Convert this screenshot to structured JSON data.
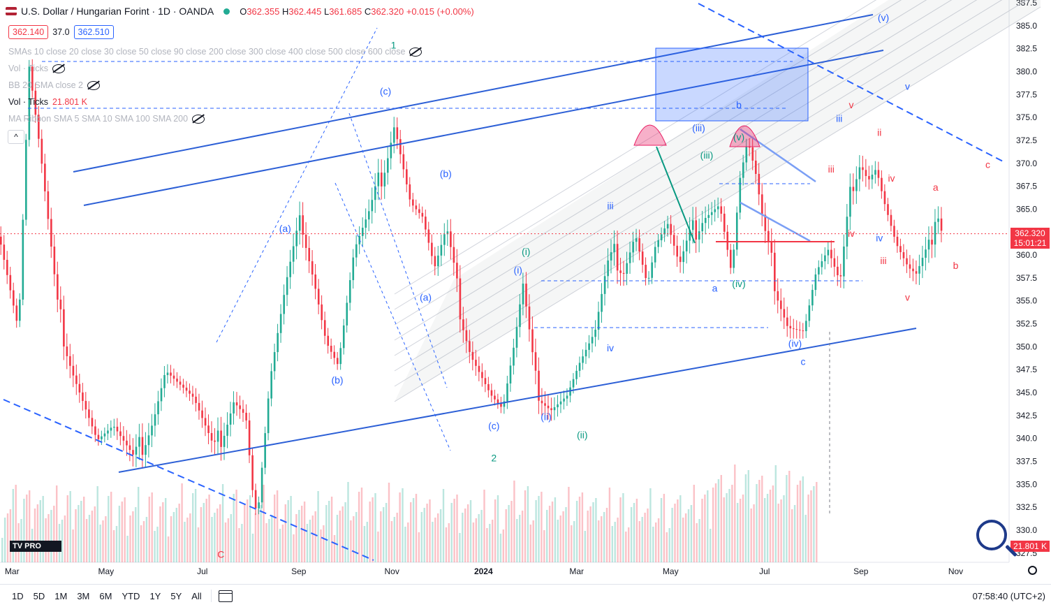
{
  "header": {
    "title": "U.S. Dollar / Hungarian Forint · 1D · OANDA",
    "open_label": "O",
    "open": "362.355",
    "high_label": "H",
    "high": "362.445",
    "low_label": "L",
    "low": "361.685",
    "close_label": "C",
    "close": "362.320",
    "change": "+0.015 (+0.00%)"
  },
  "quote": {
    "sell": "362.140",
    "spread": "37.0",
    "buy": "362.510"
  },
  "indicators": [
    {
      "label": "SMAs 10 close 20 close 30 close 50 close 90 close 200 close 300 close 400 close 500 close 600 close",
      "value": "",
      "visible": false
    },
    {
      "label": "Vol · Ticks",
      "value": "",
      "visible": false
    },
    {
      "label": "BB 20 SMA close 2",
      "value": "",
      "visible": false
    },
    {
      "label": "Vol · Ticks",
      "value": "21.801 K",
      "visible": true
    },
    {
      "label": "MA Ribbon SMA 5 SMA 10 SMA 100 SMA 200",
      "value": "",
      "visible": false
    }
  ],
  "collapse_label": "^",
  "price_tag": {
    "price": "362.320",
    "countdown": "15:01:21"
  },
  "volume_tag": "21.801 K",
  "logo": "TV PRO",
  "bottom_bar": {
    "ranges": [
      "1D",
      "5D",
      "1M",
      "3M",
      "6M",
      "YTD",
      "1Y",
      "5Y",
      "All"
    ],
    "time": "07:58:40 (UTC+2)"
  },
  "colors": {
    "up": "#22ab94",
    "down": "#f23645",
    "drawing": "#2962ff",
    "accent_pink": "#e91e63"
  },
  "chart_data": {
    "type": "candlestick",
    "x_ticks": [
      "Mar",
      "May",
      "Jul",
      "Sep",
      "Nov",
      "2024",
      "Mar",
      "May",
      "Jul",
      "Sep",
      "Nov"
    ],
    "y_ticks": [
      327.5,
      330.0,
      332.5,
      335.0,
      337.5,
      340.0,
      342.5,
      345.0,
      347.5,
      350.0,
      352.5,
      355.0,
      357.5,
      360.0,
      362.5,
      365.0,
      367.5,
      370.0,
      372.5,
      375.0,
      377.5,
      380.0,
      382.5,
      385.0,
      387.5
    ],
    "ylim": [
      326.5,
      387.8
    ],
    "last_price": 362.32,
    "close_path": [
      [
        0,
        362
      ],
      [
        0.022,
        352
      ],
      [
        0.035,
        380.5
      ],
      [
        0.05,
        370
      ],
      [
        0.07,
        354
      ],
      [
        0.09,
        348
      ],
      [
        0.12,
        340
      ],
      [
        0.14,
        341
      ],
      [
        0.165,
        337
      ],
      [
        0.19,
        343
      ],
      [
        0.205,
        348
      ],
      [
        0.24,
        344
      ],
      [
        0.265,
        338
      ],
      [
        0.29,
        345
      ],
      [
        0.305,
        343
      ],
      [
        0.315,
        333
      ],
      [
        0.32,
        332
      ],
      [
        0.335,
        346
      ],
      [
        0.355,
        356
      ],
      [
        0.375,
        364
      ],
      [
        0.39,
        358
      ],
      [
        0.405,
        351
      ],
      [
        0.42,
        348
      ],
      [
        0.44,
        360
      ],
      [
        0.46,
        364
      ],
      [
        0.48,
        371
      ],
      [
        0.49,
        375
      ],
      [
        0.51,
        366
      ],
      [
        0.525,
        364
      ],
      [
        0.54,
        358
      ],
      [
        0.555,
        362
      ],
      [
        0.57,
        355
      ],
      [
        0.585,
        350
      ],
      [
        0.6,
        347
      ],
      [
        0.61,
        345
      ],
      [
        0.625,
        343
      ],
      [
        0.64,
        350
      ],
      [
        0.65,
        356
      ],
      [
        0.665,
        346
      ],
      [
        0.685,
        344
      ],
      [
        0.705,
        345
      ],
      [
        0.72,
        348
      ],
      [
        0.74,
        351
      ],
      [
        0.755,
        358
      ],
      [
        0.765,
        360
      ],
      [
        0.775,
        359
      ],
      [
        0.79,
        363
      ],
      [
        0.805,
        357
      ],
      [
        0.815,
        361
      ],
      [
        0.83,
        363
      ],
      [
        0.845,
        358
      ],
      [
        0.86,
        362
      ],
      [
        0.875,
        365
      ],
      [
        0.895,
        366
      ],
      [
        0.91,
        358
      ],
      [
        0.92,
        368
      ],
      [
        0.93,
        372
      ],
      [
        0.94,
        368
      ],
      [
        0.95,
        362
      ],
      [
        0.965,
        357
      ],
      [
        0.98,
        353
      ],
      [
        1.0,
        352
      ],
      [
        1.015,
        358
      ],
      [
        1.03,
        360
      ],
      [
        1.045,
        356
      ],
      [
        1.06,
        368
      ],
      [
        1.07,
        371
      ],
      [
        1.08,
        369
      ],
      [
        1.09,
        370
      ],
      [
        1.1,
        366
      ],
      [
        1.115,
        361
      ],
      [
        1.13,
        358
      ],
      [
        1.14,
        357
      ],
      [
        1.155,
        360
      ],
      [
        1.165,
        366
      ],
      [
        1.175,
        362.3
      ]
    ],
    "annotations": [
      {
        "text": "(c)",
        "x": 0.48,
        "y": 377.5,
        "color": "blue"
      },
      {
        "text": "1",
        "x": 0.49,
        "y": 382.5,
        "color": "green"
      },
      {
        "text": "(a)",
        "x": 0.355,
        "y": 362.5,
        "color": "blue"
      },
      {
        "text": "(b)",
        "x": 0.42,
        "y": 346,
        "color": "blue"
      },
      {
        "text": "(b)",
        "x": 0.555,
        "y": 368.5,
        "color": "blue"
      },
      {
        "text": "(a)",
        "x": 0.53,
        "y": 355,
        "color": "blue"
      },
      {
        "text": "(c)",
        "x": 0.615,
        "y": 341,
        "color": "blue"
      },
      {
        "text": "2",
        "x": 0.615,
        "y": 337.5,
        "color": "green"
      },
      {
        "text": "(i)",
        "x": 0.655,
        "y": 360,
        "color": "green"
      },
      {
        "text": "(i)",
        "x": 0.645,
        "y": 358,
        "color": "blue"
      },
      {
        "text": "(ii)",
        "x": 0.68,
        "y": 342,
        "color": "blue"
      },
      {
        "text": "(ii)",
        "x": 0.725,
        "y": 340,
        "color": "green"
      },
      {
        "text": "iii",
        "x": 0.76,
        "y": 365,
        "color": "blue"
      },
      {
        "text": "iv",
        "x": 0.76,
        "y": 349.5,
        "color": "blue"
      },
      {
        "text": "a",
        "x": 0.89,
        "y": 356,
        "color": "blue"
      },
      {
        "text": "(iv)",
        "x": 0.92,
        "y": 356.5,
        "color": "green"
      },
      {
        "text": "(iii)",
        "x": 0.87,
        "y": 373.5,
        "color": "blue"
      },
      {
        "text": "(iii)",
        "x": 0.88,
        "y": 370.5,
        "color": "green"
      },
      {
        "text": "(v)",
        "x": 0.92,
        "y": 372.5,
        "color": "green"
      },
      {
        "text": "b",
        "x": 0.92,
        "y": 376,
        "color": "blue"
      },
      {
        "text": "(iv)",
        "x": 0.99,
        "y": 350,
        "color": "blue"
      },
      {
        "text": "c",
        "x": 1.0,
        "y": 348,
        "color": "blue"
      },
      {
        "text": "iii",
        "x": 1.045,
        "y": 374.5,
        "color": "blue"
      },
      {
        "text": "v",
        "x": 1.06,
        "y": 376,
        "color": "red"
      },
      {
        "text": "ii",
        "x": 1.095,
        "y": 373,
        "color": "red"
      },
      {
        "text": "iii",
        "x": 1.035,
        "y": 369,
        "color": "red"
      },
      {
        "text": "iv",
        "x": 1.11,
        "y": 368,
        "color": "red"
      },
      {
        "text": "iv",
        "x": 1.06,
        "y": 362,
        "color": "red"
      },
      {
        "text": "iv",
        "x": 1.095,
        "y": 361.5,
        "color": "blue"
      },
      {
        "text": "iii",
        "x": 1.1,
        "y": 359,
        "color": "red"
      },
      {
        "text": "v",
        "x": 1.13,
        "y": 355,
        "color": "red"
      },
      {
        "text": "a",
        "x": 1.165,
        "y": 367,
        "color": "red"
      },
      {
        "text": "b",
        "x": 1.19,
        "y": 358.5,
        "color": "red"
      },
      {
        "text": "c",
        "x": 1.23,
        "y": 369.5,
        "color": "red"
      },
      {
        "text": "(v)",
        "x": 1.1,
        "y": 385.5,
        "color": "blue"
      },
      {
        "text": "v",
        "x": 1.13,
        "y": 378,
        "color": "blue"
      },
      {
        "text": "C",
        "x": 0.275,
        "y": 327,
        "color": "red"
      }
    ]
  }
}
